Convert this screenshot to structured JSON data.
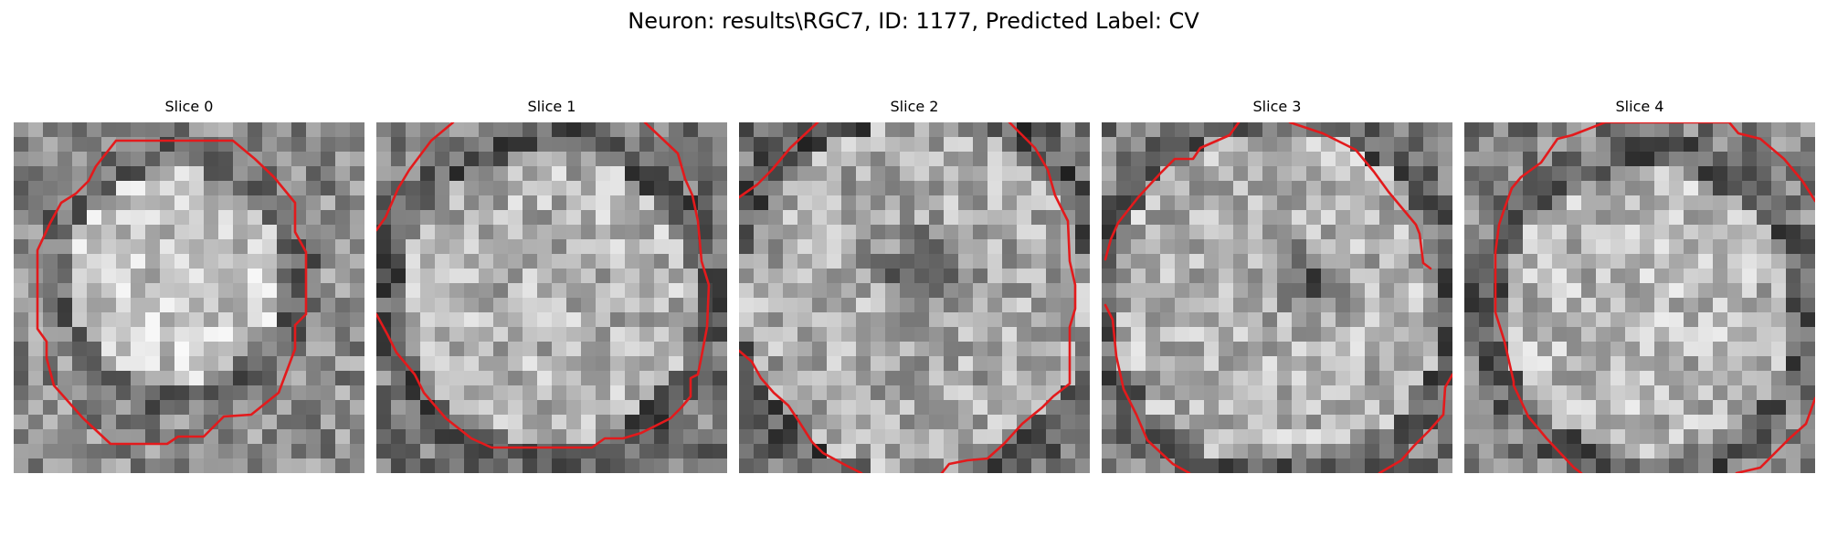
{
  "figure": {
    "title": "Neuron: results\\RGC7, ID: 1177, Predicted Label: CV"
  },
  "panels": [
    {
      "title": "Slice 0"
    },
    {
      "title": "Slice 1"
    },
    {
      "title": "Slice 2"
    },
    {
      "title": "Slice 3"
    },
    {
      "title": "Slice 4"
    }
  ],
  "style": {
    "contour_color": "#e31a1c",
    "colormap": "gray"
  }
}
